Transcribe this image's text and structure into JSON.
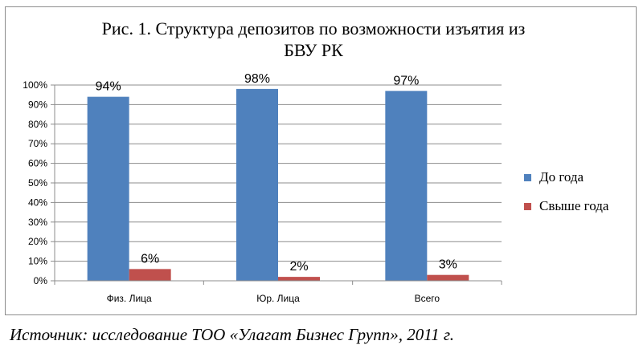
{
  "chart_data": {
    "type": "bar",
    "title_lines": [
      "Рис. 1. Структура депозитов по возможности изъятия из",
      "БВУ РК"
    ],
    "categories": [
      "Физ. Лица",
      "Юр. Лица",
      "Всего"
    ],
    "series": [
      {
        "name": "До года",
        "values": [
          94,
          98,
          97
        ],
        "labels": [
          "94%",
          "98%",
          "97%"
        ],
        "color": "#4f81bd"
      },
      {
        "name": "Свыше года",
        "values": [
          6,
          2,
          3
        ],
        "labels": [
          "6%",
          "2%",
          "3%"
        ],
        "color": "#c0504d"
      }
    ],
    "ylim": [
      0,
      100
    ],
    "yticks": [
      0,
      10,
      20,
      30,
      40,
      50,
      60,
      70,
      80,
      90,
      100
    ],
    "ytick_labels": [
      "0%",
      "10%",
      "20%",
      "30%",
      "40%",
      "50%",
      "60%",
      "70%",
      "80%",
      "90%",
      "100%"
    ],
    "grid": true,
    "legend_position": "right"
  },
  "source": "Источник: исследование ТОО «Улагат Бизнес Групп», 2011 г."
}
